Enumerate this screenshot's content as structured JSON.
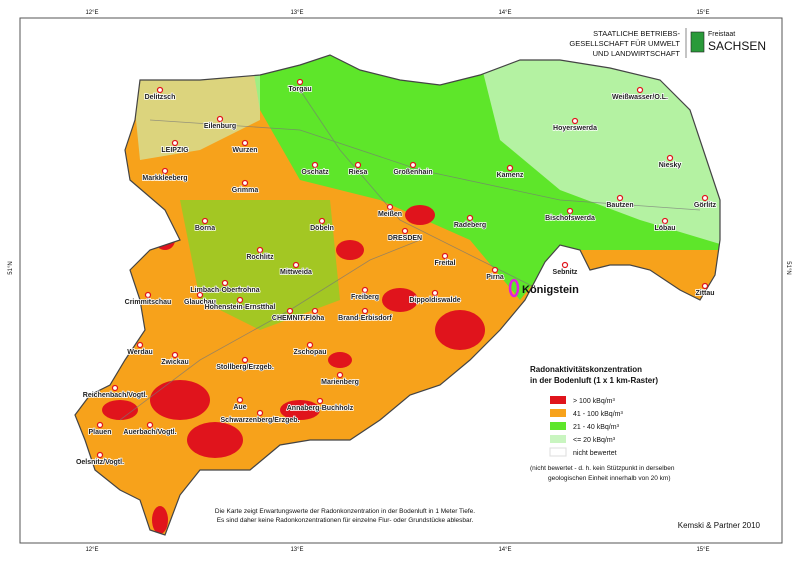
{
  "header": {
    "agency": [
      "STAATLICHE BETRIEBS-",
      "GESELLSCHAFT FÜR UMWELT",
      "UND LANDWIRTSCHAFT"
    ],
    "state_prefix": "Freistaat",
    "state_name": "SACHSEN"
  },
  "grid_labels": {
    "longitudes": [
      "12°E",
      "13°E",
      "14°E",
      "15°E"
    ],
    "latitude": "51°N"
  },
  "legend": {
    "title": [
      "Radonaktivitätskonzentration",
      "in der Bodenluft (1 x 1 km-Raster)"
    ],
    "items": [
      {
        "label": "> 100 kBq/m³",
        "color": "#e0141c"
      },
      {
        "label": "41 - 100 kBq/m³",
        "color": "#f7a21b"
      },
      {
        "label": "21 - 40 kBq/m³",
        "color": "#5ee62a"
      },
      {
        "label": "<= 20 kBq/m³",
        "color": "#c9f5c0"
      },
      {
        "label": "nicht bewertet",
        "color": "#ffffff"
      }
    ],
    "note": [
      "(nicht bewertet - d. h. kein Stützpunkt in derselben",
      "geologischen Einheit innerhalb von 20 km)"
    ]
  },
  "footnote": [
    "Die Karte zeigt Erwartungswerte der Radonkonzentration in der Bodenluft in 1 Meter Tiefe.",
    "Es sind daher keine Radonkonzentrationen für einzelne Flur- oder Grundstücke ablesbar."
  ],
  "credit": "Kemski & Partner 2010",
  "highlight": "Königstein",
  "cities": [
    "Delitzsch",
    "Torgau",
    "Weißwasser/O.L.",
    "Hoyerswerda",
    "Eilenburg",
    "LEIPZIG",
    "Wurzen",
    "Oschatz",
    "Riesa",
    "Großenhain",
    "Kamenz",
    "Niesky",
    "Markkleeberg",
    "Grimma",
    "Bischofswerda",
    "Bautzen",
    "Meißen",
    "Radeberg",
    "Borna",
    "Döbeln",
    "Löbau",
    "Görlitz",
    "DRESDEN",
    "Freital",
    "Rochlitz",
    "Mittweida",
    "Sebnitz",
    "Pirna",
    "Freiberg",
    "Dippoldiswalde",
    "Zittau",
    "Limbach-Oberfrohna",
    "Glauchau",
    "Hohenstein-Ernstthal",
    "CHEMNITZ",
    "Flöha",
    "Brand-Erbisdorf",
    "Crimmitschau",
    "Zschopau",
    "Werdau",
    "Zwickau",
    "Stollberg/Erzgeb.",
    "Marienberg",
    "Reichenbach/Vogtl.",
    "Aue",
    "Annaberg-Buchholz",
    "Schwarzenberg/Erzgeb.",
    "Plauen",
    "Auerbach/Vogtl.",
    "Oelsnitz/Vogtl."
  ]
}
